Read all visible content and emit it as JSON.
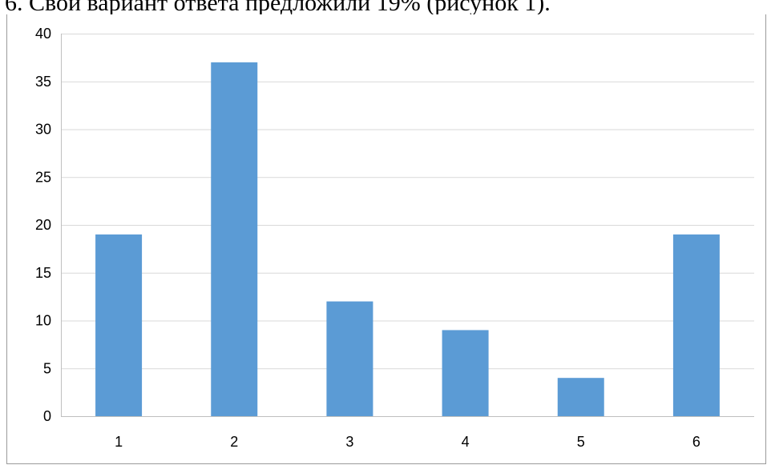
{
  "document": {
    "text_fragment": "6. Свой вариант ответа предложили 19% (рисунок 1)."
  },
  "chart_data": {
    "type": "bar",
    "categories": [
      "1",
      "2",
      "3",
      "4",
      "5",
      "6"
    ],
    "values": [
      19,
      37,
      12,
      9,
      4,
      19
    ],
    "title": "",
    "xlabel": "",
    "ylabel": "",
    "ylim": [
      0,
      40
    ],
    "yticks": [
      "0",
      "5",
      "10",
      "15",
      "20",
      "25",
      "30",
      "35",
      "40"
    ],
    "grid": true,
    "legend": "none",
    "bar_color": "#5b9bd5",
    "grid_color": "#d9d9d9",
    "axis_color": "#bfbfbf"
  }
}
